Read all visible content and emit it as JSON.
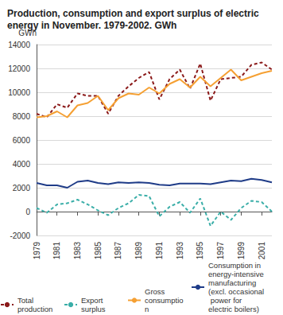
{
  "chart_data": {
    "type": "line",
    "title": "Production, consumption and export surplus of electric energy in November. 1979-2002. GWh",
    "ylabel": "GWh",
    "x": [
      1979,
      1980,
      1981,
      1982,
      1983,
      1984,
      1985,
      1986,
      1987,
      1988,
      1989,
      1990,
      1991,
      1992,
      1993,
      1994,
      1995,
      1996,
      1997,
      1998,
      1999,
      2000,
      2001,
      2002
    ],
    "xlim": [
      1979,
      2002
    ],
    "xticks": [
      1979,
      1981,
      1983,
      1985,
      1987,
      1989,
      1991,
      1993,
      1995,
      1997,
      1999,
      2001
    ],
    "ylim": [
      -2000,
      14000
    ],
    "yticks": [
      -2000,
      0,
      2000,
      4000,
      6000,
      8000,
      10000,
      12000,
      14000
    ],
    "grid": true,
    "legend": "bottom",
    "series": [
      {
        "name": "Total production",
        "color": "#8b1a1a",
        "line_style": "dashed",
        "values": [
          8200,
          7900,
          9000,
          8700,
          9900,
          9700,
          9700,
          8200,
          9700,
          10500,
          11200,
          11700,
          9400,
          11100,
          11900,
          10300,
          12400,
          9300,
          11100,
          11200,
          11300,
          12300,
          12500,
          11900
        ]
      },
      {
        "name": "Export surplus",
        "color": "#3aaea8",
        "line_style": "dashed",
        "values": [
          300,
          -100,
          600,
          700,
          1000,
          600,
          100,
          -300,
          300,
          700,
          1400,
          1300,
          -400,
          400,
          800,
          -100,
          1100,
          -1200,
          0,
          -700,
          300,
          900,
          800,
          0
        ]
      },
      {
        "name": "Gross consumption",
        "color": "#f5a033",
        "line_style": "solid",
        "values": [
          7900,
          8000,
          8400,
          7900,
          8900,
          9100,
          9700,
          8500,
          9500,
          9900,
          9800,
          10400,
          9900,
          10700,
          11100,
          10400,
          11300,
          10500,
          11200,
          11900,
          11000,
          11300,
          11600,
          11800
        ]
      },
      {
        "name": "Consumption in energy-intensive manufacturing (excl. occasional power for electric boilers)",
        "color": "#1f3c88",
        "line_style": "solid",
        "values": [
          2400,
          2200,
          2200,
          2000,
          2500,
          2600,
          2400,
          2300,
          2450,
          2400,
          2450,
          2400,
          2250,
          2200,
          2350,
          2350,
          2350,
          2300,
          2450,
          2600,
          2550,
          2750,
          2650,
          2450
        ]
      }
    ]
  }
}
